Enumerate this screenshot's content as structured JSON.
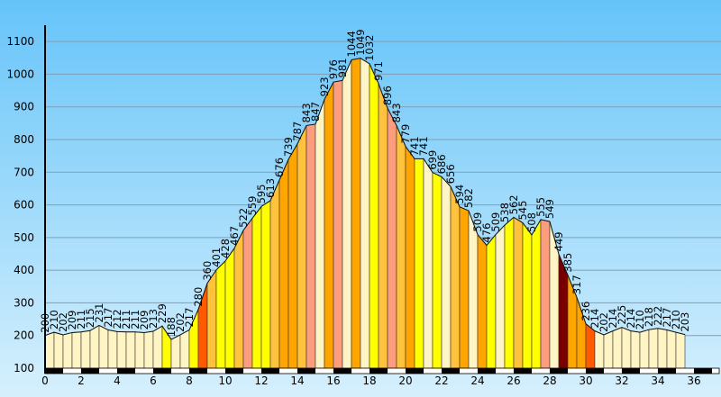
{
  "chart_data": {
    "type": "area",
    "title": "",
    "xlabel": "",
    "ylabel": "",
    "xlim": [
      0,
      37
    ],
    "ylim": [
      100,
      1150
    ],
    "y_ticks": [
      100,
      200,
      300,
      400,
      500,
      600,
      700,
      800,
      900,
      1000,
      1100
    ],
    "x_ticks": [
      0,
      2,
      4,
      6,
      8,
      10,
      12,
      14,
      16,
      18,
      20,
      22,
      24,
      26,
      28,
      30,
      32,
      34,
      36
    ],
    "grid": true,
    "background_colors": [
      "#66c4f9",
      "#d6f0fd"
    ],
    "segment_colors": {
      "cream": "#fff4c4",
      "yellow": "#ffff00",
      "light_orange": "#ffc23c",
      "orange": "#ffa500",
      "salmon": "#fc9d7d",
      "red_orange": "#ff5a00",
      "dark_red": "#7a0000"
    },
    "points": [
      {
        "x": 0.0,
        "y": 200,
        "c": "cream"
      },
      {
        "x": 0.5,
        "y": 210,
        "c": "cream"
      },
      {
        "x": 1.0,
        "y": 202,
        "c": "cream"
      },
      {
        "x": 1.5,
        "y": 209,
        "c": "cream"
      },
      {
        "x": 2.0,
        "y": 211,
        "c": "cream"
      },
      {
        "x": 2.5,
        "y": 215,
        "c": "cream"
      },
      {
        "x": 3.0,
        "y": 231,
        "c": "cream"
      },
      {
        "x": 3.5,
        "y": 217,
        "c": "cream"
      },
      {
        "x": 4.0,
        "y": 212,
        "c": "cream"
      },
      {
        "x": 4.5,
        "y": 211,
        "c": "cream"
      },
      {
        "x": 5.0,
        "y": 211,
        "c": "cream"
      },
      {
        "x": 5.5,
        "y": 209,
        "c": "cream"
      },
      {
        "x": 6.0,
        "y": 213,
        "c": "cream"
      },
      {
        "x": 6.5,
        "y": 229,
        "c": "yellow"
      },
      {
        "x": 7.0,
        "y": 188,
        "c": "cream"
      },
      {
        "x": 7.5,
        "y": 202,
        "c": "cream"
      },
      {
        "x": 8.0,
        "y": 217,
        "c": "yellow"
      },
      {
        "x": 8.5,
        "y": 280,
        "c": "red_orange"
      },
      {
        "x": 9.0,
        "y": 360,
        "c": "light_orange"
      },
      {
        "x": 9.5,
        "y": 401,
        "c": "yellow"
      },
      {
        "x": 10.0,
        "y": 428,
        "c": "yellow"
      },
      {
        "x": 10.5,
        "y": 467,
        "c": "light_orange"
      },
      {
        "x": 11.0,
        "y": 522,
        "c": "salmon"
      },
      {
        "x": 11.5,
        "y": 559,
        "c": "yellow"
      },
      {
        "x": 12.0,
        "y": 595,
        "c": "yellow"
      },
      {
        "x": 12.5,
        "y": 613,
        "c": "light_orange"
      },
      {
        "x": 13.0,
        "y": 676,
        "c": "orange"
      },
      {
        "x": 13.5,
        "y": 739,
        "c": "orange"
      },
      {
        "x": 14.0,
        "y": 787,
        "c": "light_orange"
      },
      {
        "x": 14.5,
        "y": 843,
        "c": "salmon"
      },
      {
        "x": 15.0,
        "y": 847,
        "c": "cream"
      },
      {
        "x": 15.5,
        "y": 923,
        "c": "orange"
      },
      {
        "x": 16.0,
        "y": 976,
        "c": "salmon"
      },
      {
        "x": 16.5,
        "y": 981,
        "c": "cream"
      },
      {
        "x": 17.0,
        "y": 1044,
        "c": "orange"
      },
      {
        "x": 17.5,
        "y": 1049,
        "c": "cream"
      },
      {
        "x": 18.0,
        "y": 1032,
        "c": "yellow"
      },
      {
        "x": 18.5,
        "y": 971,
        "c": "light_orange"
      },
      {
        "x": 19.0,
        "y": 896,
        "c": "salmon"
      },
      {
        "x": 19.5,
        "y": 843,
        "c": "light_orange"
      },
      {
        "x": 20.0,
        "y": 779,
        "c": "orange"
      },
      {
        "x": 20.5,
        "y": 741,
        "c": "yellow"
      },
      {
        "x": 21.0,
        "y": 741,
        "c": "cream"
      },
      {
        "x": 21.5,
        "y": 699,
        "c": "yellow"
      },
      {
        "x": 22.0,
        "y": 686,
        "c": "cream"
      },
      {
        "x": 22.5,
        "y": 656,
        "c": "light_orange"
      },
      {
        "x": 23.0,
        "y": 594,
        "c": "orange"
      },
      {
        "x": 23.5,
        "y": 582,
        "c": "cream"
      },
      {
        "x": 24.0,
        "y": 509,
        "c": "orange"
      },
      {
        "x": 24.5,
        "y": 476,
        "c": "yellow"
      },
      {
        "x": 25.0,
        "y": 509,
        "c": "cream"
      },
      {
        "x": 25.5,
        "y": 538,
        "c": "yellow"
      },
      {
        "x": 26.0,
        "y": 562,
        "c": "light_orange"
      },
      {
        "x": 26.5,
        "y": 545,
        "c": "yellow"
      },
      {
        "x": 27.0,
        "y": 508,
        "c": "yellow"
      },
      {
        "x": 27.5,
        "y": 555,
        "c": "salmon"
      },
      {
        "x": 28.0,
        "y": 549,
        "c": "cream"
      },
      {
        "x": 28.5,
        "y": 449,
        "c": "dark_red"
      },
      {
        "x": 29.0,
        "y": 385,
        "c": "orange"
      },
      {
        "x": 29.5,
        "y": 317,
        "c": "orange"
      },
      {
        "x": 30.0,
        "y": 236,
        "c": "red_orange"
      },
      {
        "x": 30.5,
        "y": 214,
        "c": "cream"
      },
      {
        "x": 31.0,
        "y": 202,
        "c": "cream"
      },
      {
        "x": 31.5,
        "y": 214,
        "c": "cream"
      },
      {
        "x": 32.0,
        "y": 225,
        "c": "cream"
      },
      {
        "x": 32.5,
        "y": 214,
        "c": "cream"
      },
      {
        "x": 33.0,
        "y": 210,
        "c": "cream"
      },
      {
        "x": 33.5,
        "y": 218,
        "c": "cream"
      },
      {
        "x": 34.0,
        "y": 222,
        "c": "cream"
      },
      {
        "x": 34.5,
        "y": 217,
        "c": "cream"
      },
      {
        "x": 35.0,
        "y": 210,
        "c": "cream"
      },
      {
        "x": 35.5,
        "y": 203,
        "c": "cream"
      }
    ]
  }
}
